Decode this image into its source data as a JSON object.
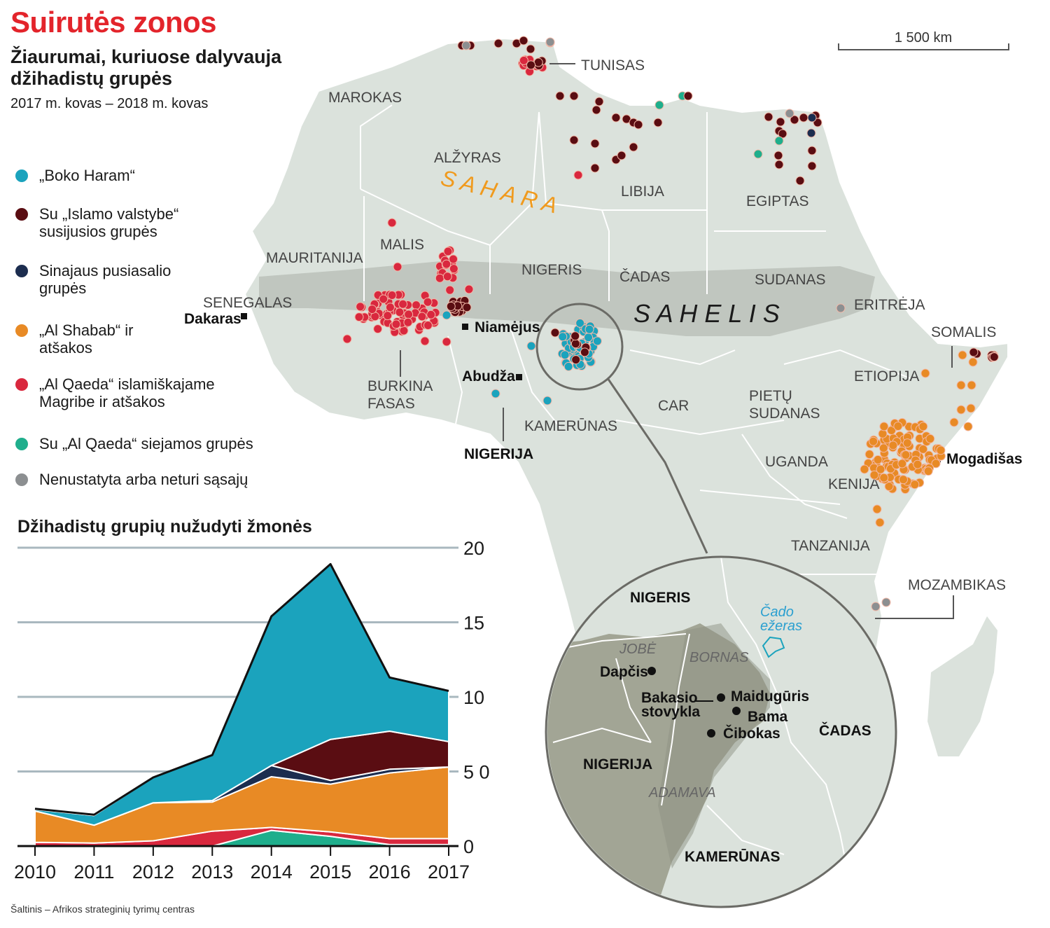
{
  "header": {
    "title": "Suirutės zonos",
    "subtitle": "Žiaurumai, kuriuose dalyvauja džihadistų grupės",
    "date_range": "2017 m. kovas – 2018 m. kovas"
  },
  "legend": [
    {
      "label": "„Boko Haram“",
      "color": "#1ba3bd"
    },
    {
      "label": "Su „Islamo valstybe“ susijusios grupės",
      "color": "#5a0d12"
    },
    {
      "label": "Sinajaus pusiasalio grupės",
      "color": "#1c2d4f"
    },
    {
      "label": "„Al Shabab“ ir atšakos",
      "color": "#e88a25"
    },
    {
      "label": "„Al Qaeda“ islamiškajame Magribe ir atšakos",
      "color": "#d9283e"
    },
    {
      "label": "Su „Al Qaeda“ siejamos grupės",
      "color": "#1fae8c"
    },
    {
      "label": "Nenustatyta arba neturi sąsajų",
      "color": "#8c8f91"
    }
  ],
  "map": {
    "scale_label": "1 500 km",
    "regions": {
      "sahara": "S A H A R A",
      "sahel": "S A H E L I S"
    },
    "countries": [
      "MAROKAS",
      "ALŽYRAS",
      "TUNISAS",
      "LIBIJA",
      "EGIPTAS",
      "MAURITANIJA",
      "MALIS",
      "NIGERIS",
      "ČADAS",
      "SUDANAS",
      "ERITRĖJA",
      "SENEGALAS",
      "BURKINA FASAS",
      "NIGERIJA",
      "KAMERŪNAS",
      "CAR",
      "PIETŲ SUDANAS",
      "ETIOPIJA",
      "SOMALIS",
      "UGANDA",
      "KENIJA",
      "TANZANIJA",
      "MOZAMBIKAS"
    ],
    "labels": {
      "marokas": "MAROKAS",
      "alzyras": "ALŽYRAS",
      "tunisas": "TUNISAS",
      "libija": "LIBIJA",
      "egiptas": "EGIPTAS",
      "mauritanija": "MAURITANIJA",
      "malis": "MALIS",
      "nigeris": "NIGERIS",
      "cadas": "ČADAS",
      "sudanas": "SUDANAS",
      "eritreja": "ERITRĖJA",
      "senegalas": "SENEGALAS",
      "burkina1": "BURKINA",
      "burkina2": "FASAS",
      "nigerija": "NIGERIJA",
      "kamerunas": "KAMERŪNAS",
      "car": "CAR",
      "pietu1": "PIETŲ",
      "pietu2": "SUDANAS",
      "etiopija": "ETIOPIJA",
      "somalis": "SOMALIS",
      "uganda": "UGANDA",
      "kenija": "KENIJA",
      "tanzanija": "TANZANIJA",
      "mozambikas": "MOZAMBIKAS"
    },
    "cities": {
      "dakaras": "Dakaras",
      "niamejus": "Niamėjus",
      "abudza": "Abudža",
      "mogadisas": "Mogadišas"
    },
    "inset": {
      "nigeris": "NIGERIS",
      "cado1": "Čado",
      "cado2": "ežeras",
      "jobe": "JOBĖ",
      "bornas": "BORNAS",
      "dapcis": "Dapčis",
      "bakasio1": "Bakasio",
      "bakasio2": "stovykla",
      "maiduguris": "Maidugūris",
      "bama": "Bama",
      "cibokas": "Čibokas",
      "nigerija": "NIGERIJA",
      "cadas": "ČADAS",
      "adamava": "ADAMAVA",
      "kamerunas": "KAMERŪNAS"
    }
  },
  "chart_data": {
    "type": "area",
    "stacked": true,
    "title": "Džihadistų grupių nužudyti žmonės",
    "xlabel": "",
    "ylabel": "",
    "categories": [
      "2010",
      "2011",
      "2012",
      "2013",
      "2014",
      "2015",
      "2016",
      "2017"
    ],
    "ylim": [
      0,
      20000
    ],
    "yticks": [
      0,
      5000,
      10000,
      15000,
      20000
    ],
    "ytick_labels": [
      "0",
      "5 000",
      "10 000",
      "15 000",
      "20 000"
    ],
    "grid": true,
    "series": [
      {
        "name": "Su „Al Qaeda“ siejamos grupės",
        "color": "#1fae8c",
        "values": [
          0,
          0,
          0,
          0,
          1050,
          650,
          100,
          100
        ]
      },
      {
        "name": "„Al Qaeda“ islamiškajame Magribe ir atšakos",
        "color": "#d9283e",
        "values": [
          250,
          200,
          350,
          1000,
          200,
          300,
          400,
          400
        ]
      },
      {
        "name": "„Al Shabab“ ir atšakos",
        "color": "#e88a25",
        "values": [
          2100,
          1200,
          2550,
          1950,
          3400,
          3200,
          4400,
          4800
        ]
      },
      {
        "name": "Sinajaus pusiasalio grupės",
        "color": "#1c2d4f",
        "values": [
          0,
          0,
          0,
          100,
          750,
          250,
          250,
          0
        ]
      },
      {
        "name": "Su „Islamo valstybe“ susijusios grupės",
        "color": "#5a0d12",
        "values": [
          0,
          0,
          0,
          0,
          0,
          2750,
          2550,
          1700
        ]
      },
      {
        "name": "„Boko Haram“",
        "color": "#1ba3bd",
        "values": [
          100,
          650,
          1700,
          3050,
          10000,
          11750,
          3600,
          3400
        ]
      },
      {
        "name": "Nenustatyta arba neturi sąsajų",
        "color": "#8c8f91",
        "values": [
          50,
          50,
          0,
          0,
          0,
          0,
          0,
          0
        ]
      }
    ]
  },
  "source": "Šaltinis – Afrikos strateginių tyrimų centras"
}
